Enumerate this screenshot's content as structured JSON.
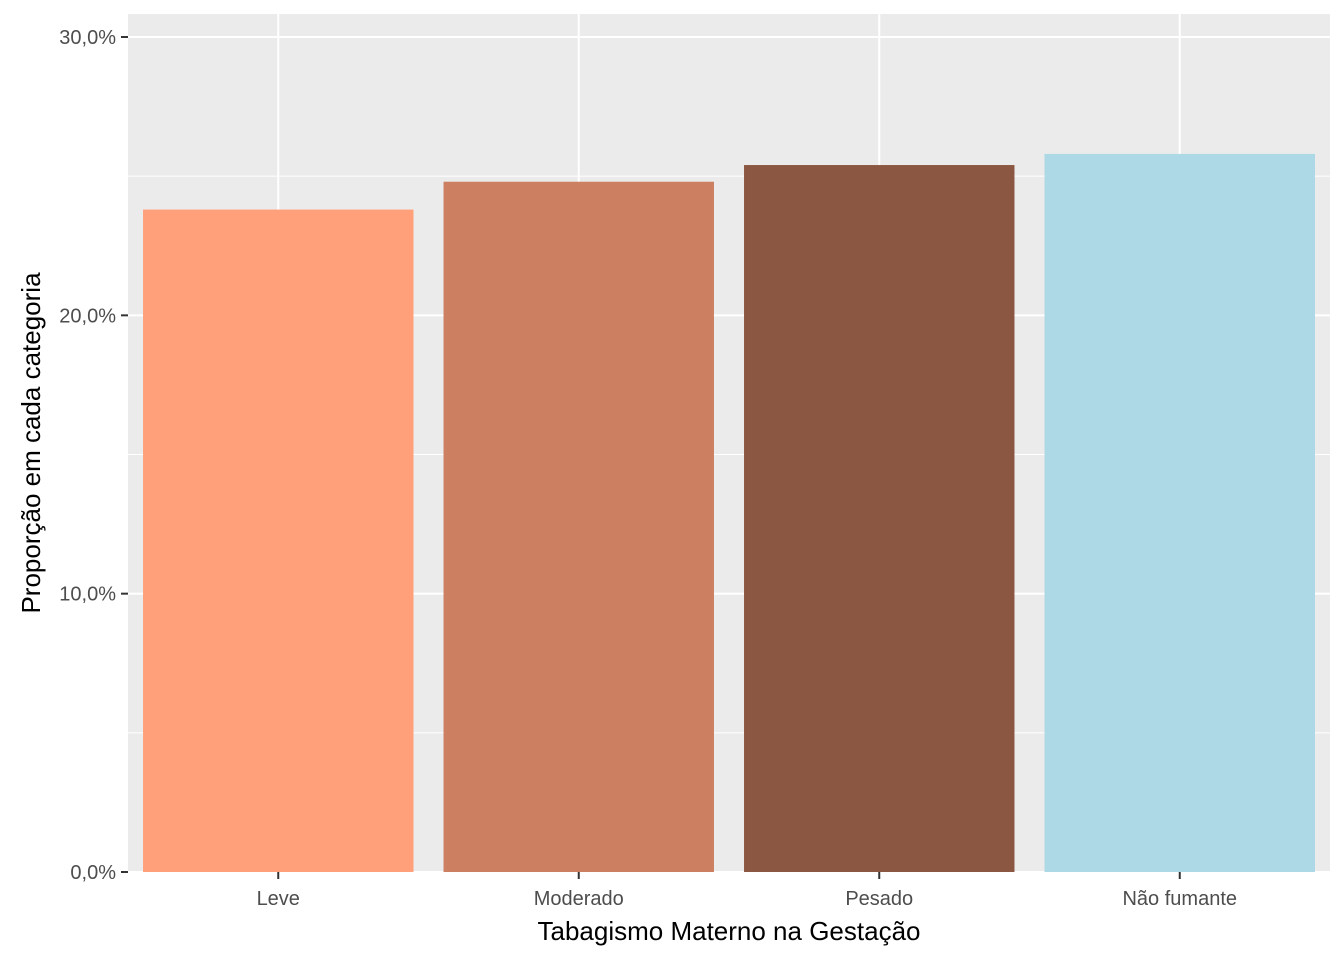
{
  "chart_data": {
    "type": "bar",
    "categories": [
      "Leve",
      "Moderado",
      "Pesado",
      "Não fumante"
    ],
    "values": [
      23.8,
      24.8,
      25.4,
      25.8
    ],
    "colors": [
      "#FFA07A",
      "#CD7F62",
      "#8B5742",
      "#ADD8E6"
    ],
    "xlabel": "Tabagismo Materno na Gestação",
    "ylabel": "Proporção em cada categoria",
    "ylim": [
      0,
      30
    ],
    "yticks": [
      0,
      10,
      20,
      30
    ],
    "ytick_labels": [
      "0,0%",
      "10,0%",
      "20,0%",
      "30,0%"
    ],
    "grid": true,
    "panel_background": "#EBEBEB",
    "grid_color": "#FFFFFF"
  }
}
